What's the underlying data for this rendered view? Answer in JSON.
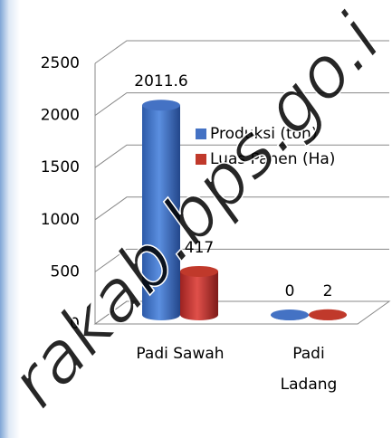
{
  "chart_data": {
    "type": "bar",
    "categories": [
      "Padi Sawah",
      "Padi Ladang"
    ],
    "series": [
      {
        "name": "Produksi (ton)",
        "color": "#4472c4",
        "values": [
          2011.6,
          0
        ]
      },
      {
        "name": "Luas Panen (Ha)",
        "color": "#c0392b",
        "values": [
          417,
          2
        ]
      }
    ],
    "ylim": [
      0,
      2500
    ],
    "yticks": [
      0,
      500,
      1000,
      1500,
      2000,
      2500
    ],
    "grid": true,
    "watermark": "rakab.bps.go.i"
  }
}
